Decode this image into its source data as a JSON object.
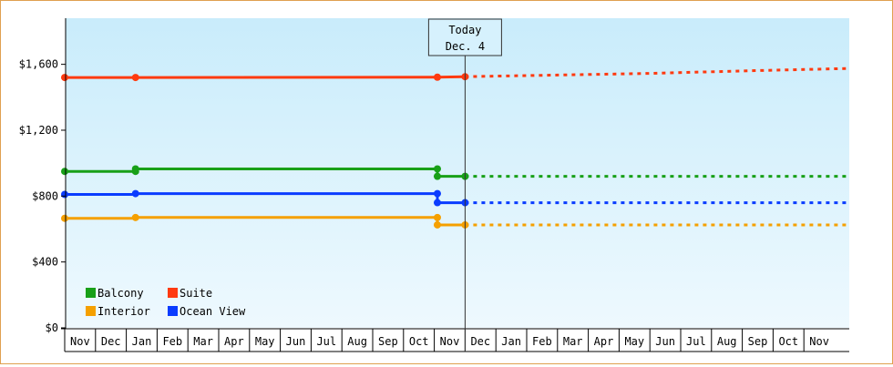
{
  "chart_data": {
    "type": "line",
    "y_tick_labels": [
      "$0",
      "$400",
      "$800",
      "$1,200",
      "$1,600"
    ],
    "y_ticks": [
      0,
      400,
      800,
      1200,
      1600
    ],
    "ylim": [
      0,
      1880
    ],
    "x_months": [
      "Nov",
      "Dec",
      "Jan",
      "Feb",
      "Mar",
      "Apr",
      "May",
      "Jun",
      "Jul",
      "Aug",
      "Sep",
      "Oct",
      "Nov",
      "Dec",
      "Jan",
      "Feb",
      "Mar",
      "Apr",
      "May",
      "Jun",
      "Jul",
      "Aug",
      "Sep",
      "Oct",
      "Nov"
    ],
    "today_label": [
      "Today",
      "Dec. 4"
    ],
    "today_month_index": 13,
    "legend_placement": "bottom-left",
    "grid": false,
    "series": [
      {
        "name": "Balcony",
        "color": "#18a018",
        "actual": [
          [
            0,
            950
          ],
          [
            2.3,
            950
          ],
          [
            2.3,
            965
          ],
          [
            12.1,
            965
          ],
          [
            12.1,
            920
          ],
          [
            13.0,
            920
          ]
        ],
        "points": [
          [
            0,
            950
          ],
          [
            2.3,
            950
          ],
          [
            2.3,
            965
          ],
          [
            12.1,
            965
          ],
          [
            12.1,
            920
          ],
          [
            13.0,
            920
          ]
        ],
        "forecast": [
          [
            13.0,
            920
          ],
          [
            25.4,
            920
          ]
        ]
      },
      {
        "name": "Suite",
        "color": "#ff3a10",
        "actual": [
          [
            0,
            1520
          ],
          [
            2.3,
            1520
          ],
          [
            12.1,
            1522
          ],
          [
            13.0,
            1525
          ]
        ],
        "points": [
          [
            0,
            1520
          ],
          [
            2.3,
            1520
          ],
          [
            12.1,
            1522
          ],
          [
            13.0,
            1525
          ]
        ],
        "forecast": [
          [
            13.0,
            1525
          ],
          [
            16.0,
            1535
          ],
          [
            19.0,
            1545
          ],
          [
            22.0,
            1560
          ],
          [
            25.4,
            1575
          ]
        ]
      },
      {
        "name": "Interior",
        "color": "#f5a000",
        "actual": [
          [
            0,
            665
          ],
          [
            2.3,
            665
          ],
          [
            2.3,
            670
          ],
          [
            12.1,
            670
          ],
          [
            12.1,
            625
          ],
          [
            13.0,
            625
          ]
        ],
        "points": [
          [
            0,
            665
          ],
          [
            2.3,
            670
          ],
          [
            12.1,
            670
          ],
          [
            12.1,
            625
          ],
          [
            13.0,
            625
          ]
        ],
        "forecast": [
          [
            13.0,
            625
          ],
          [
            25.4,
            625
          ]
        ]
      },
      {
        "name": "Ocean View",
        "color": "#0a3cff",
        "actual": [
          [
            0,
            810
          ],
          [
            2.3,
            810
          ],
          [
            2.3,
            815
          ],
          [
            12.1,
            815
          ],
          [
            12.1,
            760
          ],
          [
            13.0,
            760
          ]
        ],
        "points": [
          [
            0,
            810
          ],
          [
            2.3,
            815
          ],
          [
            12.1,
            815
          ],
          [
            12.1,
            760
          ],
          [
            13.0,
            760
          ]
        ],
        "forecast": [
          [
            13.0,
            760
          ],
          [
            25.4,
            760
          ]
        ]
      }
    ],
    "legend": [
      "Balcony",
      "Suite",
      "Interior",
      "Ocean View"
    ]
  }
}
